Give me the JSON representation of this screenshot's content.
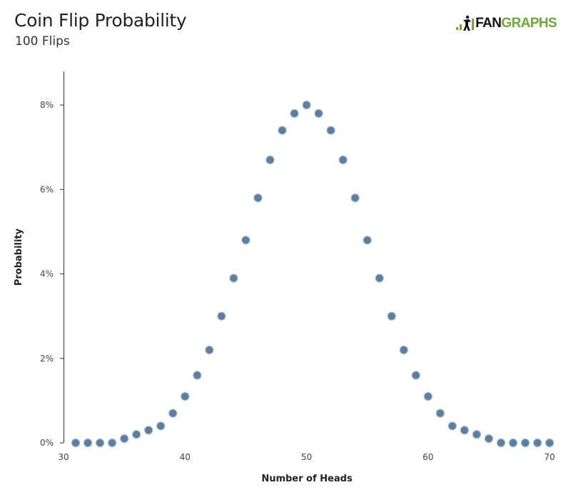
{
  "header": {
    "title": "Coin Flip Probability",
    "subtitle": "100 Flips"
  },
  "logo": {
    "text_dark": "FAN",
    "text_green": "GRAPHS",
    "green_color": "#6bab35",
    "dark_color": "#111111"
  },
  "colors": {
    "point_fill": "#5b7fa3",
    "point_stroke": "#9fb4c9",
    "axis": "#333333"
  },
  "chart_data": {
    "type": "scatter",
    "title": "Coin Flip Probability",
    "subtitle": "100 Flips",
    "xlabel": "Number of Heads",
    "ylabel": "Probability",
    "xlim": [
      30,
      70
    ],
    "ylim": [
      0,
      8.8
    ],
    "x_ticks": [
      30,
      40,
      50,
      60,
      70
    ],
    "x_tick_labels": [
      "30",
      "40",
      "50",
      "60",
      "70"
    ],
    "y_ticks": [
      0,
      2,
      4,
      6,
      8
    ],
    "y_tick_labels": [
      "0%",
      "2%",
      "4%",
      "6%",
      "8%"
    ],
    "grid": false,
    "legend": "none",
    "x": [
      31,
      32,
      33,
      34,
      35,
      36,
      37,
      38,
      39,
      40,
      41,
      42,
      43,
      44,
      45,
      46,
      47,
      48,
      49,
      50,
      51,
      52,
      53,
      54,
      55,
      56,
      57,
      58,
      59,
      60,
      61,
      62,
      63,
      64,
      65,
      66,
      67,
      68,
      69,
      70
    ],
    "y": [
      0,
      0,
      0,
      0,
      0.1,
      0.2,
      0.3,
      0.4,
      0.7,
      1.1,
      1.6,
      2.2,
      3.0,
      3.9,
      4.8,
      5.8,
      6.7,
      7.4,
      7.8,
      8.0,
      7.8,
      7.4,
      6.7,
      5.8,
      4.8,
      3.9,
      3.0,
      2.2,
      1.6,
      1.1,
      0.7,
      0.4,
      0.3,
      0.2,
      0.1,
      0,
      0,
      0,
      0,
      0
    ]
  }
}
